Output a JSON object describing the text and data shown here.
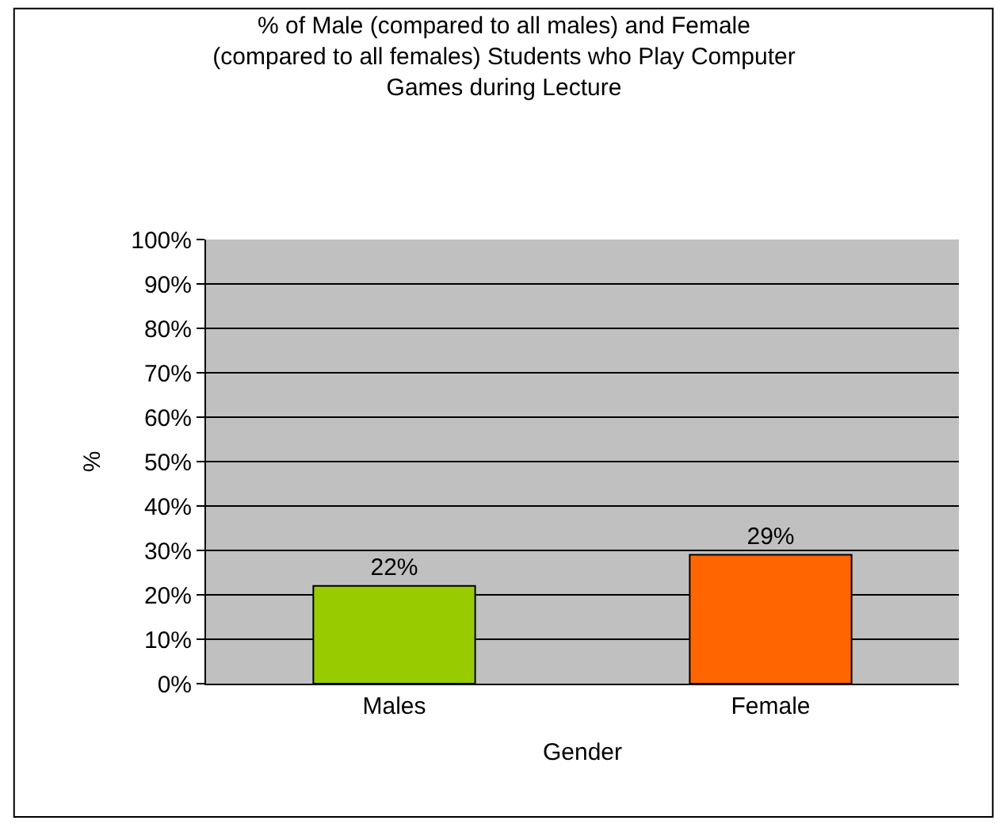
{
  "chart_data": {
    "type": "bar",
    "title": "% of Male (compared to all males) and Female\n(compared to all females) Students who Play Computer\nGames during Lecture",
    "xlabel": "Gender",
    "ylabel": "%",
    "categories": [
      "Males",
      "Female"
    ],
    "values": [
      22,
      29
    ],
    "colors": [
      "#99cc00",
      "#ff6600"
    ],
    "value_labels": [
      "22%",
      "29%"
    ],
    "ylim": [
      0,
      100
    ],
    "yticks": [
      {
        "value": 0,
        "label": "0%"
      },
      {
        "value": 10,
        "label": "10%"
      },
      {
        "value": 20,
        "label": "20%"
      },
      {
        "value": 30,
        "label": "30%"
      },
      {
        "value": 40,
        "label": "40%"
      },
      {
        "value": 50,
        "label": "50%"
      },
      {
        "value": 60,
        "label": "60%"
      },
      {
        "value": 70,
        "label": "70%"
      },
      {
        "value": 80,
        "label": "80%"
      },
      {
        "value": 90,
        "label": "90%"
      },
      {
        "value": 100,
        "label": "100%"
      }
    ],
    "grid": "y",
    "legend": false
  }
}
